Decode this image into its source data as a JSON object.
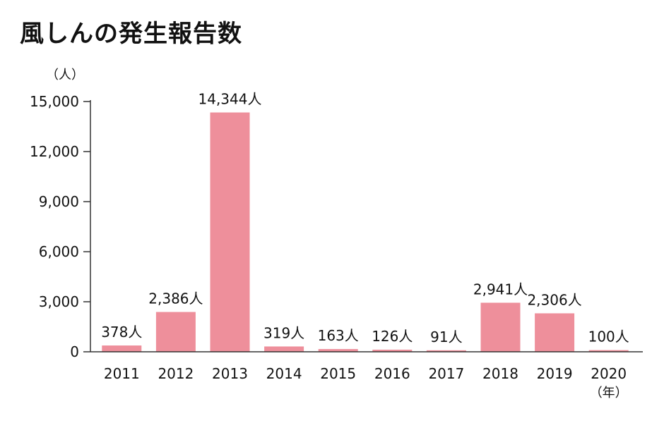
{
  "chart_data": {
    "type": "bar",
    "title": "風しんの発生報告数",
    "ylabel": "（人）",
    "xlabel": "（年）",
    "categories": [
      "2011",
      "2012",
      "2013",
      "2014",
      "2015",
      "2016",
      "2017",
      "2018",
      "2019",
      "2020"
    ],
    "values": [
      378,
      2386,
      14344,
      319,
      163,
      126,
      91,
      2941,
      2306,
      100
    ],
    "data_labels": [
      "378人",
      "2,386人",
      "14,344人",
      "319人",
      "163人",
      "126人",
      "91人",
      "2,941人",
      "2,306人",
      "100人"
    ],
    "yticks": [
      0,
      3000,
      6000,
      9000,
      12000,
      15000
    ],
    "ytick_labels": [
      "0",
      "3,000",
      "6,000",
      "9,000",
      "12,000",
      "15,000"
    ],
    "ylim": [
      0,
      15000
    ],
    "grid": false,
    "legend": "none",
    "bar_color": "#ee8f9b",
    "axis_color": "#333333"
  }
}
